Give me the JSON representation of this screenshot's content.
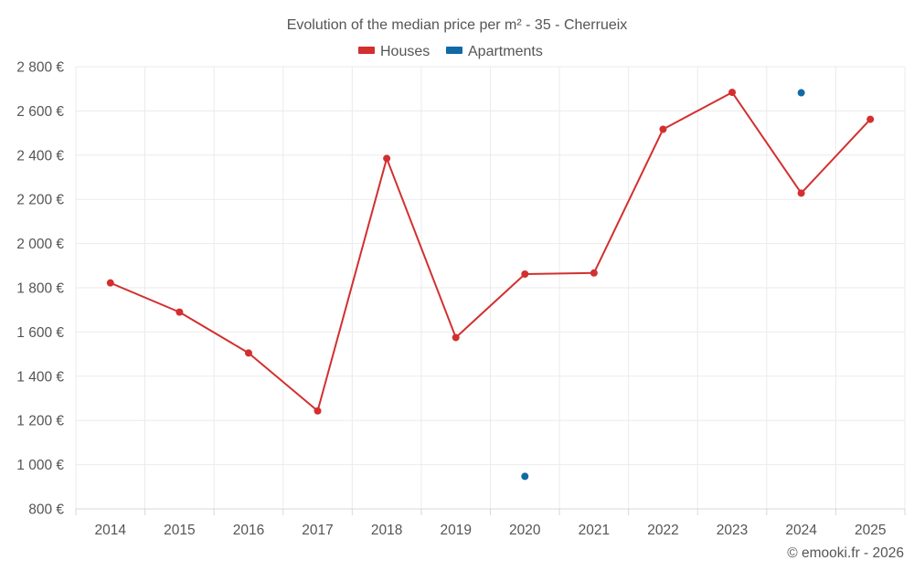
{
  "chart_data": {
    "type": "line",
    "title": "Evolution of the median price per m² - 35 - Cherrueix",
    "xlabel": "",
    "ylabel": "",
    "categories": [
      "2014",
      "2015",
      "2016",
      "2017",
      "2018",
      "2019",
      "2020",
      "2021",
      "2022",
      "2023",
      "2024",
      "2025"
    ],
    "ylim": [
      800,
      2800
    ],
    "yticks": [
      800,
      1000,
      1200,
      1400,
      1600,
      1800,
      2000,
      2200,
      2400,
      2600,
      2800
    ],
    "ytick_labels": [
      "800 €",
      "1 000 €",
      "1 200 €",
      "1 400 €",
      "1 600 €",
      "1 800 €",
      "2 000 €",
      "2 200 €",
      "2 400 €",
      "2 600 €",
      "2 800 €"
    ],
    "grid": true,
    "legend_position": "top-center",
    "series": [
      {
        "name": "Houses",
        "color": "#d32f2f",
        "values": [
          1822,
          1690,
          1505,
          1243,
          2385,
          1575,
          1862,
          1867,
          2517,
          2684,
          2228,
          2562
        ]
      },
      {
        "name": "Apartments",
        "color": "#0f6aa6",
        "values": [
          null,
          null,
          null,
          null,
          null,
          null,
          947,
          null,
          null,
          null,
          2682,
          null
        ]
      }
    ]
  },
  "footer": {
    "copyright": "© emooki.fr - 2026"
  }
}
